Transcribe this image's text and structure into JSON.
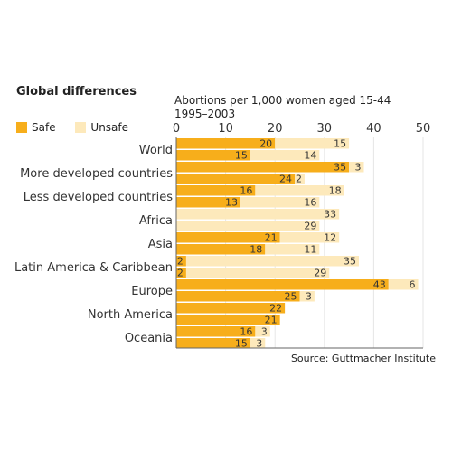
{
  "chart_data": {
    "type": "bar",
    "orientation": "horizontal",
    "stacked": true,
    "title": "Global differences",
    "subtitle_lines": [
      "Abortions per 1,000 women aged 15-44",
      "1995–2003"
    ],
    "source": "Source: Guttmacher Institute",
    "xlim": [
      0,
      50
    ],
    "x_ticks": [
      "0",
      "10",
      "20",
      "30",
      "40",
      "50"
    ],
    "legend_position": "top-left",
    "series": [
      {
        "name": "Safe",
        "color": "#f7ae1b"
      },
      {
        "name": "Unsafe",
        "color": "#fde9bb"
      }
    ],
    "categories": [
      {
        "label": "World",
        "bars": [
          {
            "safe": 20,
            "unsafe": 15
          },
          {
            "safe": 15,
            "unsafe": 14
          }
        ]
      },
      {
        "label": "More developed countries",
        "bars": [
          {
            "safe": 35,
            "unsafe": 3
          },
          {
            "safe": 24,
            "unsafe": 2
          }
        ]
      },
      {
        "label": "Less developed countries",
        "bars": [
          {
            "safe": 16,
            "unsafe": 18
          },
          {
            "safe": 13,
            "unsafe": 16
          }
        ]
      },
      {
        "label": "Africa",
        "bars": [
          {
            "safe": null,
            "unsafe": 33
          },
          {
            "safe": null,
            "unsafe": 29
          }
        ]
      },
      {
        "label": "Asia",
        "bars": [
          {
            "safe": 21,
            "unsafe": 12
          },
          {
            "safe": 18,
            "unsafe": 11
          }
        ]
      },
      {
        "label": "Latin America & Caribbean",
        "bars": [
          {
            "safe": 2,
            "unsafe": 35
          },
          {
            "safe": 2,
            "unsafe": 29
          }
        ]
      },
      {
        "label": "Europe",
        "bars": [
          {
            "safe": 43,
            "unsafe": 6
          },
          {
            "safe": 25,
            "unsafe": 3
          }
        ]
      },
      {
        "label": "North America",
        "bars": [
          {
            "safe": 22,
            "unsafe": null
          },
          {
            "safe": 21,
            "unsafe": null
          }
        ]
      },
      {
        "label": "Oceania",
        "bars": [
          {
            "safe": 16,
            "unsafe": 3
          },
          {
            "safe": 15,
            "unsafe": 3
          }
        ]
      }
    ]
  }
}
